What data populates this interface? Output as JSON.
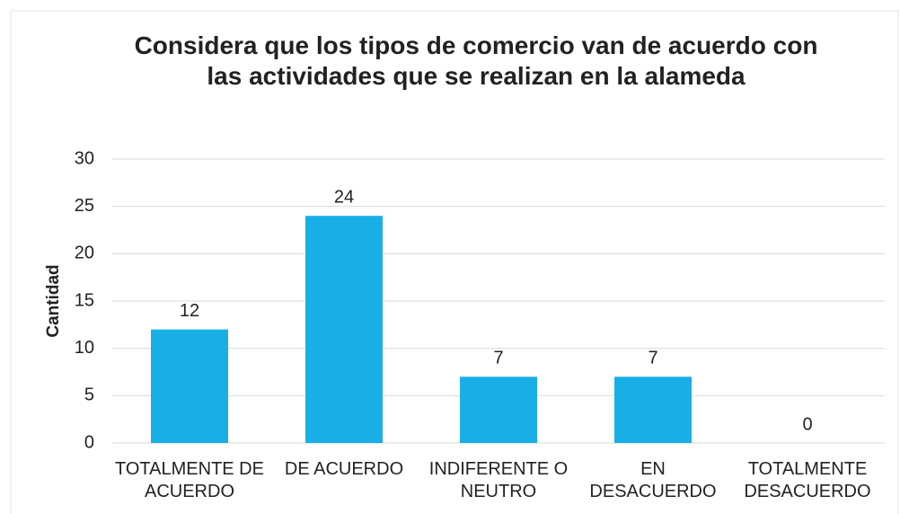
{
  "chart_data": {
    "type": "bar",
    "title": "Considera que los tipos de comercio van de acuerdo con las actividades que se realizan en la alameda",
    "y_label": "Cantidad",
    "categories": [
      "TOTALMENTE DE ACUERDO",
      "DE ACUERDO",
      "INDIFERENTE O NEUTRO",
      "EN DESACUERDO",
      "TOTALMENTE DESACUERDO"
    ],
    "values": [
      12,
      24,
      7,
      7,
      0
    ],
    "color": "#1aaee6",
    "ylim": [
      0,
      30
    ],
    "yticks": [
      0,
      5,
      10,
      15,
      20,
      25,
      30
    ],
    "grid": true
  }
}
